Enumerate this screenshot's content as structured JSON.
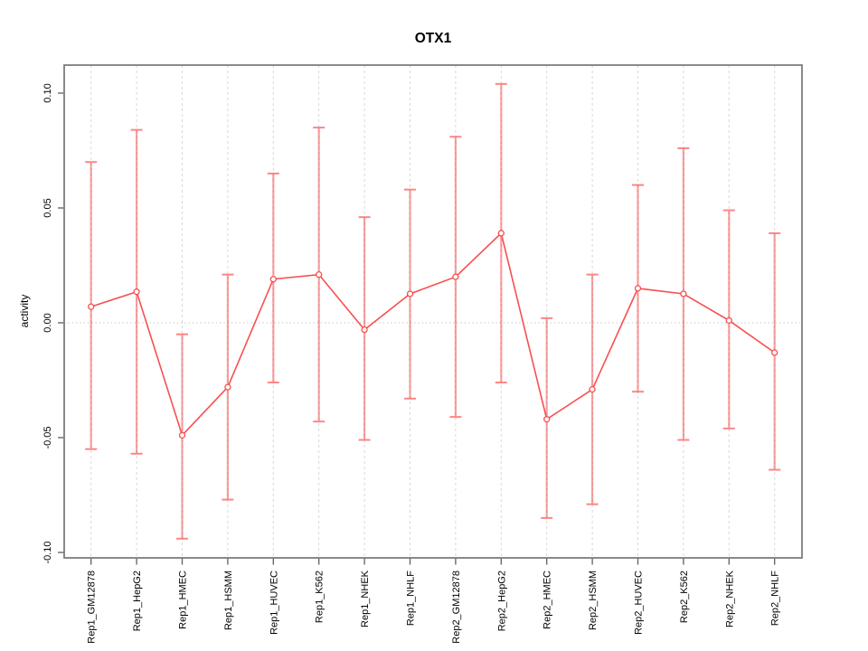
{
  "chart_data": {
    "type": "line",
    "title": "OTX1",
    "xlabel": "",
    "ylabel": "activity",
    "categories": [
      "Rep1_GM12878",
      "Rep1_HepG2",
      "Rep1_HMEC",
      "Rep1_HSMM",
      "Rep1_HUVEC",
      "Rep1_K562",
      "Rep1_NHEK",
      "Rep1_NHLF",
      "Rep2_GM12878",
      "Rep2_HepG2",
      "Rep2_HMEC",
      "Rep2_HSMM",
      "Rep2_HUVEC",
      "Rep2_K562",
      "Rep2_NHEK",
      "Rep2_NHLF"
    ],
    "series": [
      {
        "name": "OTX1 activity",
        "values": [
          0.007,
          0.0135,
          -0.049,
          -0.028,
          0.019,
          0.021,
          -0.003,
          0.0126,
          0.02,
          0.039,
          -0.042,
          -0.029,
          0.015,
          0.0126,
          0.001,
          -0.013
        ],
        "upper": [
          0.07,
          0.084,
          -0.005,
          0.021,
          0.065,
          0.085,
          0.046,
          0.058,
          0.081,
          0.104,
          0.002,
          0.021,
          0.06,
          0.076,
          0.049,
          0.039
        ],
        "lower": [
          -0.055,
          -0.057,
          -0.094,
          -0.077,
          -0.026,
          -0.043,
          -0.051,
          -0.033,
          -0.041,
          -0.026,
          -0.085,
          -0.079,
          -0.03,
          -0.051,
          -0.046,
          -0.064
        ]
      }
    ],
    "ylim": [
      -0.102,
      0.112
    ],
    "yticks": [
      -0.1,
      -0.05,
      0.0,
      0.05,
      0.1
    ],
    "ytick_labels": [
      "-0.10",
      "-0.05",
      "0.00",
      "0.05",
      "0.10"
    ],
    "grid": {
      "vertical": "dashed line at every category",
      "horizontal": "dotted line at y = 0 only"
    },
    "legend": "none",
    "marker": "open-circle",
    "colors": {
      "errorbar": "#ff9e9e",
      "errorbar_cap": "#ff8585",
      "line": "#f84f4f",
      "point": "#f84f4f",
      "grid": "#828282",
      "axis": "#7d7d7d",
      "tick": "#5e5e5e",
      "text": "#000000",
      "background": "#ffffff"
    }
  }
}
